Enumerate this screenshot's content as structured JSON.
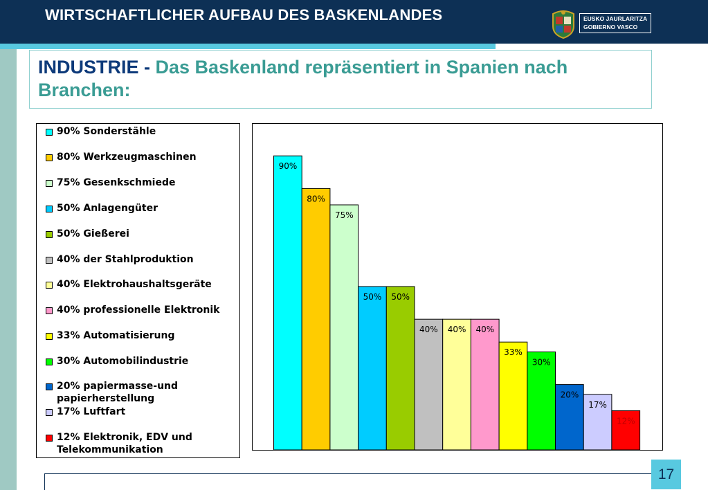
{
  "header": {
    "title": "WIRTSCHAFTLICHER AUFBAU DES BASKENLANDES",
    "logo": {
      "line1": "EUSKO JAURLARITZA",
      "line2": "GOBIERNO VASCO",
      "icon": "basque-coat-of-arms-icon"
    }
  },
  "slide_title": {
    "lead": "INDUSTRIE -",
    "rest": "Das Baskenland repräsentiert in Spanien nach Branchen:"
  },
  "page_number": "17",
  "colors": {
    "header_bg": "#0d3055",
    "accent": "#58c9e0",
    "title_lead": "#0d3a7a",
    "title_rest": "#3a9c94"
  },
  "chart_data": {
    "type": "bar",
    "title": "",
    "xlabel": "",
    "ylabel": "",
    "ylim": [
      0,
      100
    ],
    "grid": false,
    "legend_position": "left",
    "categories": [
      "90% Sonderstähle",
      "80% Werkzeugmaschinen",
      "75% Gesenkschmiede",
      "50% Anlagengüter",
      "50% Gießerei",
      "40% der Stahlproduktion",
      "40% Elektrohaushaltsgeräte",
      "40% professionelle Elektronik",
      "33% Automatisierung",
      "30% Automobilindustrie",
      "20% papiermasse-und\npapierherstellung",
      "17% Luftfart",
      "12% Elektronik, EDV und\nTelekommunikation"
    ],
    "values": [
      90,
      80,
      75,
      50,
      50,
      40,
      40,
      40,
      33,
      30,
      20,
      17,
      12
    ],
    "data_labels": [
      "90%",
      "80%",
      "75%",
      "50%",
      "50%",
      "40%",
      "40%",
      "40%",
      "33%",
      "30%",
      "20%",
      "17%",
      "12%"
    ],
    "colors": [
      "#00ffff",
      "#ffcc00",
      "#ccffcc",
      "#00ccff",
      "#99cc00",
      "#c0c0c0",
      "#ffff99",
      "#ff99cc",
      "#ffff00",
      "#00ff00",
      "#0066cc",
      "#ccccff",
      "#ff0000"
    ],
    "label_colors": [
      "#000000",
      "#000000",
      "#000000",
      "#000000",
      "#000000",
      "#000000",
      "#000000",
      "#000000",
      "#000000",
      "#000000",
      "#000000",
      "#000000",
      "#c00000"
    ]
  }
}
